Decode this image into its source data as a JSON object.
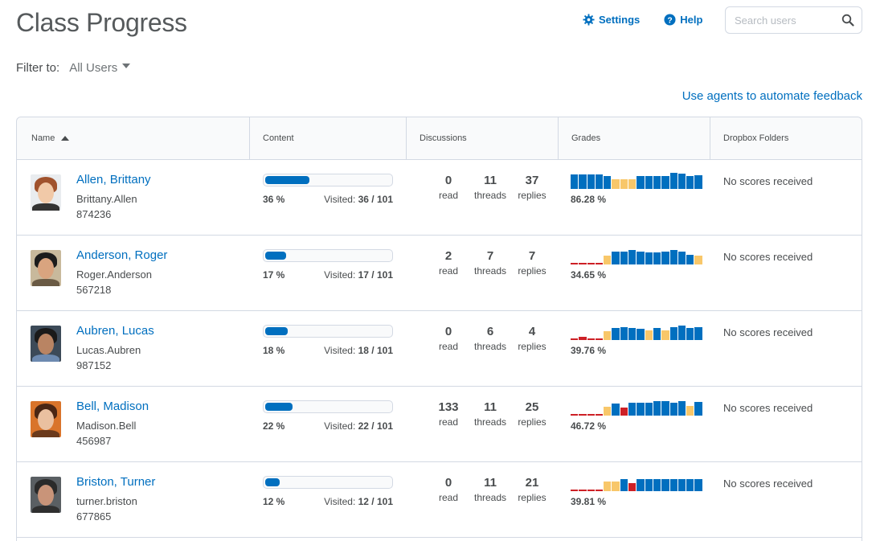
{
  "header": {
    "title": "Class Progress",
    "settings_label": "Settings",
    "help_label": "Help",
    "search_placeholder": "Search users"
  },
  "filter": {
    "label": "Filter to:",
    "value": "All Users"
  },
  "agents_link": "Use agents to automate feedback",
  "columns": {
    "name": "Name",
    "content": "Content",
    "discussions": "Discussions",
    "grades": "Grades",
    "dropbox": "Dropbox Folders"
  },
  "colors": {
    "accent": "#006fbf",
    "grade_good": "#006fbf",
    "grade_mid": "#f8c76a",
    "grade_bad": "#cd2026"
  },
  "students": [
    {
      "name": "Allen, Brittany",
      "username": "Brittany.Allen",
      "org_id": "874236",
      "content_pct_label": "36 %",
      "content_fraction": 0.36,
      "visited_label": "Visited:",
      "visited_value": "36 / 101",
      "read": "0",
      "threads": "11",
      "replies": "37",
      "grade_pct": "86.28 %",
      "grade_levels": [
        0.9,
        0.9,
        0.9,
        0.9,
        0.8,
        0.6,
        0.6,
        0.6,
        0.8,
        0.8,
        0.8,
        0.8,
        1.0,
        0.95,
        0.8,
        0.85
      ],
      "grade_kinds": [
        "g",
        "g",
        "g",
        "g",
        "g",
        "m",
        "m",
        "m",
        "g",
        "g",
        "g",
        "g",
        "g",
        "g",
        "g",
        "g"
      ],
      "dropbox": "No scores received"
    },
    {
      "name": "Anderson, Roger",
      "username": "Roger.Anderson",
      "org_id": "567218",
      "content_pct_label": "17 %",
      "content_fraction": 0.17,
      "visited_label": "Visited:",
      "visited_value": "17 / 101",
      "read": "2",
      "threads": "7",
      "replies": "7",
      "grade_pct": "34.65 %",
      "grade_levels": [
        0.05,
        0.05,
        0.05,
        0.05,
        0.55,
        0.8,
        0.8,
        0.9,
        0.8,
        0.75,
        0.75,
        0.8,
        0.9,
        0.8,
        0.6,
        0.55
      ],
      "grade_kinds": [
        "b",
        "b",
        "b",
        "b",
        "m",
        "g",
        "g",
        "g",
        "g",
        "g",
        "g",
        "g",
        "g",
        "g",
        "g",
        "m"
      ],
      "dropbox": "No scores received"
    },
    {
      "name": "Aubren, Lucas",
      "username": "Lucas.Aubren",
      "org_id": "987152",
      "content_pct_label": "18 %",
      "content_fraction": 0.18,
      "visited_label": "Visited:",
      "visited_value": "18 / 101",
      "read": "0",
      "threads": "6",
      "replies": "4",
      "grade_pct": "39.76 %",
      "grade_levels": [
        0.05,
        0.2,
        0.05,
        0.05,
        0.55,
        0.75,
        0.8,
        0.75,
        0.7,
        0.6,
        0.75,
        0.6,
        0.8,
        0.9,
        0.75,
        0.8
      ],
      "grade_kinds": [
        "b",
        "b",
        "b",
        "b",
        "m",
        "g",
        "g",
        "g",
        "g",
        "m",
        "g",
        "m",
        "g",
        "g",
        "g",
        "g"
      ],
      "dropbox": "No scores received"
    },
    {
      "name": "Bell, Madison",
      "username": "Madison.Bell",
      "org_id": "456987",
      "content_pct_label": "22 %",
      "content_fraction": 0.22,
      "visited_label": "Visited:",
      "visited_value": "22 / 101",
      "read": "133",
      "threads": "11",
      "replies": "25",
      "grade_pct": "46.72 %",
      "grade_levels": [
        0.05,
        0.05,
        0.05,
        0.1,
        0.55,
        0.75,
        0.5,
        0.8,
        0.8,
        0.8,
        0.9,
        0.9,
        0.8,
        0.9,
        0.6,
        0.85
      ],
      "grade_kinds": [
        "b",
        "b",
        "b",
        "b",
        "m",
        "g",
        "b",
        "g",
        "g",
        "g",
        "g",
        "g",
        "g",
        "g",
        "m",
        "g"
      ],
      "dropbox": "No scores received"
    },
    {
      "name": "Briston, Turner",
      "username": "turner.briston",
      "org_id": "677865",
      "content_pct_label": "12 %",
      "content_fraction": 0.12,
      "visited_label": "Visited:",
      "visited_value": "12 / 101",
      "read": "0",
      "threads": "11",
      "replies": "21",
      "grade_pct": "39.81 %",
      "grade_levels": [
        0.05,
        0.05,
        0.1,
        0.05,
        0.6,
        0.6,
        0.75,
        0.5,
        0.75,
        0.75,
        0.75,
        0.75,
        0.75,
        0.75,
        0.75,
        0.75
      ],
      "grade_kinds": [
        "b",
        "b",
        "b",
        "b",
        "m",
        "m",
        "g",
        "b",
        "g",
        "g",
        "g",
        "g",
        "g",
        "g",
        "g",
        "g"
      ],
      "dropbox": "No scores received"
    }
  ],
  "discussion_labels": {
    "read": "read",
    "threads": "threads",
    "replies": "replies"
  }
}
